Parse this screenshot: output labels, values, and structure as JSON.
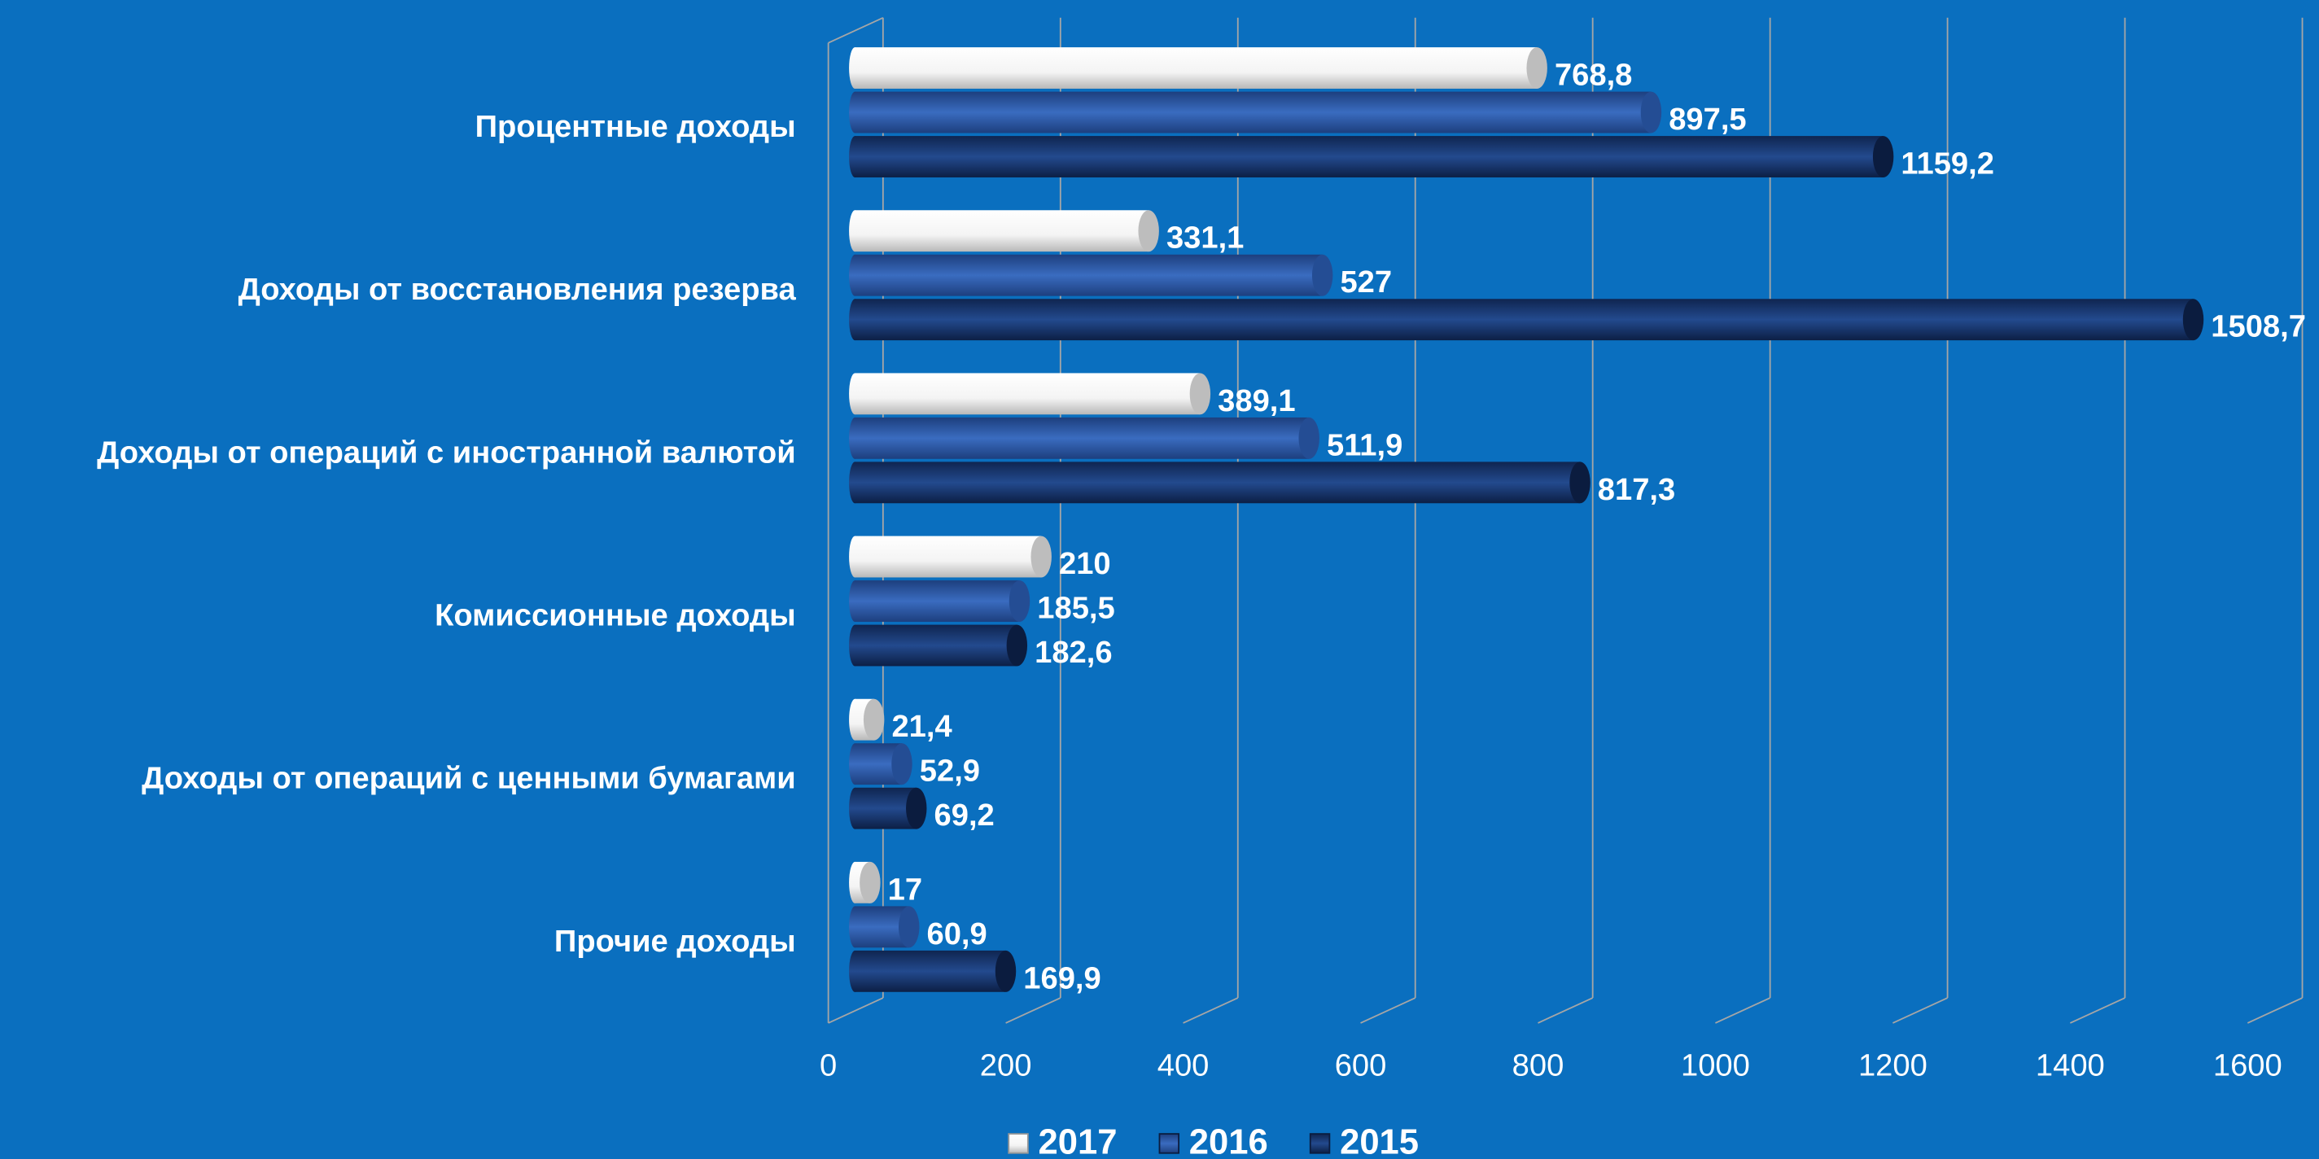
{
  "chart_data": {
    "type": "bar",
    "orientation": "horizontal",
    "categories": [
      "Процентные доходы",
      "Доходы от восстановления резерва",
      "Доходы от операций с иностранной валютой",
      "Комиссионные доходы",
      "Доходы от операций с ценными бумагами",
      "Прочие доходы"
    ],
    "series": [
      {
        "name": "2017",
        "color": "#ffffff",
        "values": [
          768.8,
          331.1,
          389.1,
          210,
          21.4,
          17
        ],
        "value_labels": [
          "768,8",
          "331,1",
          "389,1",
          "210",
          "21,4",
          "17"
        ]
      },
      {
        "name": "2016",
        "color": "#2f5fae",
        "values": [
          897.5,
          527,
          511.9,
          185.5,
          52.9,
          60.9
        ],
        "value_labels": [
          "897,5",
          "527",
          "511,9",
          "185,5",
          "52,9",
          "60,9"
        ]
      },
      {
        "name": "2015",
        "color": "#17346e",
        "values": [
          1159.2,
          1508.7,
          817.3,
          182.6,
          69.2,
          169.9
        ],
        "value_labels": [
          "1159,2",
          "1508,7",
          "817,3",
          "182,6",
          "69,2",
          "169,9"
        ]
      }
    ],
    "xlim": [
      0,
      1600
    ],
    "xticks": [
      0,
      200,
      400,
      600,
      800,
      1000,
      1200,
      1400,
      1600
    ],
    "grid": true,
    "legend": "bottom"
  }
}
